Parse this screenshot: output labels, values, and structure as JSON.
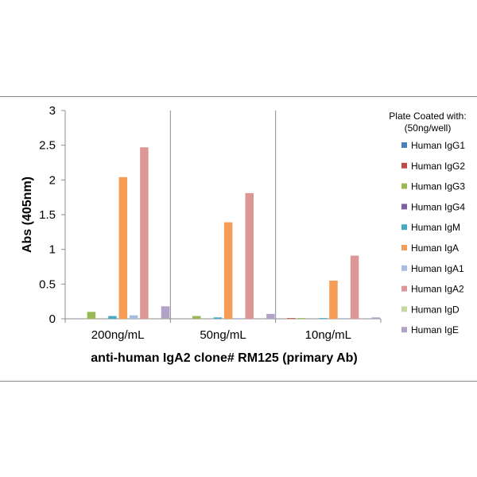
{
  "chart_data": {
    "type": "bar",
    "title": "",
    "xlabel": "anti-human IgA2 clone# RM125 (primary Ab)",
    "ylabel": "Abs (405nm)",
    "ylim": [
      0,
      3
    ],
    "yticks": [
      "0",
      "0.5",
      "1",
      "1.5",
      "2",
      "2.5",
      "3"
    ],
    "categories": [
      "200ng/mL",
      "50ng/mL",
      "10ng/mL"
    ],
    "grid": false,
    "legend_position": "right",
    "legend_title": "Plate Coated with: (50ng/well)",
    "legend_title_lines": [
      "Plate Coated with:",
      "(50ng/well)"
    ],
    "series": [
      {
        "name": "Human IgG1",
        "color": "#4a7ebb",
        "values": [
          0.0,
          0.0,
          0.0
        ]
      },
      {
        "name": "Human IgG2",
        "color": "#be4b48",
        "values": [
          0.0,
          0.0,
          0.01
        ]
      },
      {
        "name": "Human IgG3",
        "color": "#98b954",
        "values": [
          0.1,
          0.04,
          0.01
        ]
      },
      {
        "name": "Human IgG4",
        "color": "#7d60a0",
        "values": [
          0.0,
          0.0,
          0.0
        ]
      },
      {
        "name": "Human IgM",
        "color": "#46aac5",
        "values": [
          0.04,
          0.02,
          0.01
        ]
      },
      {
        "name": "Human IgA",
        "color": "#f59d56",
        "values": [
          2.04,
          1.39,
          0.55
        ]
      },
      {
        "name": "Human IgA1",
        "color": "#a9bce2",
        "values": [
          0.05,
          0.01,
          0.01
        ]
      },
      {
        "name": "Human IgA2",
        "color": "#dc9695",
        "values": [
          2.47,
          1.81,
          0.91
        ]
      },
      {
        "name": "Human IgD",
        "color": "#c4d9a0",
        "values": [
          0.0,
          0.0,
          0.0
        ]
      },
      {
        "name": "Human IgE",
        "color": "#b2a2c7",
        "values": [
          0.18,
          0.07,
          0.02
        ]
      }
    ]
  }
}
